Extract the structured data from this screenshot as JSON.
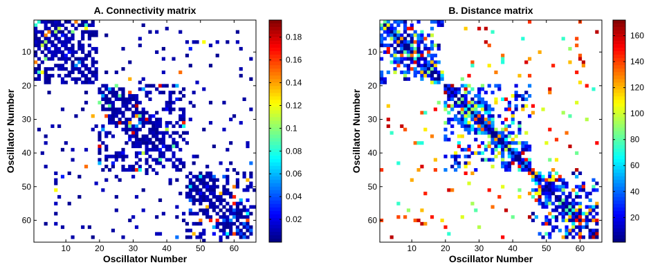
{
  "chart_data": [
    {
      "type": "heatmap",
      "title": "A. Connectivity matrix",
      "xlabel": "Oscillator Number",
      "ylabel": "Oscillator Number",
      "matrix_size": 66,
      "xlim": [
        1,
        66
      ],
      "ylim": [
        66,
        1
      ],
      "xticks": [
        10,
        20,
        30,
        40,
        50,
        60
      ],
      "yticks": [
        10,
        20,
        30,
        40,
        50,
        60
      ],
      "colorbar": {
        "range": [
          0.0,
          0.195
        ],
        "ticks": [
          0.02,
          0.04,
          0.06,
          0.08,
          0.1,
          0.12,
          0.14,
          0.16,
          0.18
        ],
        "tick_labels": [
          "0.02",
          "0.04",
          "0.06",
          "0.08",
          "0.1",
          "0.12",
          "0.14",
          "0.16",
          "0.18"
        ],
        "colormap": "jet"
      },
      "blocks": [
        [
          1,
          19
        ],
        [
          20,
          45
        ],
        [
          46,
          65
        ]
      ],
      "empty_color": "#ffffff"
    },
    {
      "type": "heatmap",
      "title": "B. Distance matrix",
      "xlabel": "Oscillator Number",
      "ylabel": "Oscillator Number",
      "matrix_size": 66,
      "xlim": [
        1,
        66
      ],
      "ylim": [
        66,
        1
      ],
      "xticks": [
        10,
        20,
        30,
        40,
        50,
        60
      ],
      "yticks": [
        10,
        20,
        30,
        40,
        50,
        60
      ],
      "colorbar": {
        "range": [
          1,
          172
        ],
        "ticks": [
          20,
          40,
          60,
          80,
          100,
          120,
          140,
          160
        ],
        "tick_labels": [
          "20",
          "40",
          "60",
          "80",
          "100",
          "120",
          "140",
          "160"
        ],
        "colormap": "jet"
      },
      "blocks": [
        [
          1,
          19
        ],
        [
          20,
          45
        ],
        [
          46,
          65
        ]
      ],
      "empty_color": "#ffffff"
    }
  ]
}
